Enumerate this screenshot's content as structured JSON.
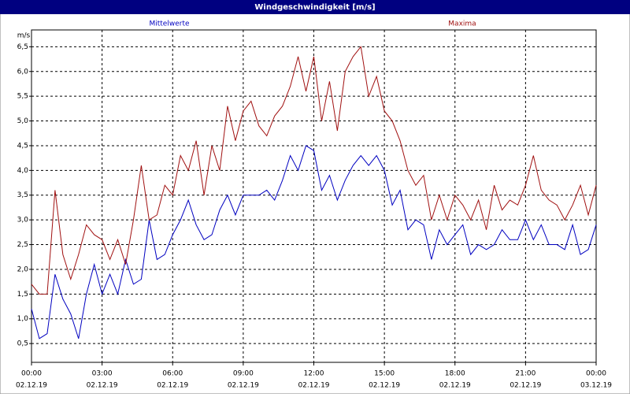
{
  "chart_data": {
    "type": "line",
    "title": "Windgeschwindigkeit [m/s]",
    "y_unit": "m/s",
    "x": [
      0,
      20,
      40,
      60,
      80,
      100,
      120,
      140,
      160,
      180,
      200,
      220,
      240,
      260,
      280,
      300,
      320,
      340,
      360,
      380,
      400,
      420,
      440,
      460,
      480,
      500,
      520,
      540,
      560,
      580,
      600,
      620,
      640,
      660,
      680,
      700,
      720,
      740,
      760,
      780,
      800,
      820,
      840,
      860,
      880,
      900,
      920,
      940,
      960,
      980,
      1000,
      1020,
      1040,
      1060,
      1080,
      1100,
      1120,
      1140,
      1160,
      1180,
      1200,
      1220,
      1240,
      1260,
      1280,
      1300,
      1320,
      1340,
      1360,
      1380,
      1400,
      1420,
      1440
    ],
    "series": [
      {
        "name": "Mittelwerte",
        "color": "#0000c0",
        "values": [
          1.2,
          0.6,
          0.7,
          1.9,
          1.4,
          1.1,
          0.6,
          1.5,
          2.1,
          1.5,
          1.9,
          1.5,
          2.2,
          1.7,
          1.8,
          3.0,
          2.2,
          2.3,
          2.7,
          3.0,
          3.4,
          2.9,
          2.6,
          2.7,
          3.2,
          3.5,
          3.1,
          3.5,
          3.5,
          3.5,
          3.6,
          3.4,
          3.8,
          4.3,
          4.0,
          4.5,
          4.4,
          3.6,
          3.9,
          3.4,
          3.8,
          4.1,
          4.3,
          4.1,
          4.3,
          4.0,
          3.3,
          3.6,
          2.8,
          3.0,
          2.9,
          2.2,
          2.8,
          2.5,
          2.7,
          2.9,
          2.3,
          2.5,
          2.4,
          2.5,
          2.8,
          2.6,
          2.6,
          3.0,
          2.6,
          2.9,
          2.5,
          2.5,
          2.4,
          2.9,
          2.3,
          2.4,
          2.9
        ]
      },
      {
        "name": "Maxima",
        "color": "#a01010",
        "values": [
          1.7,
          1.5,
          1.5,
          3.6,
          2.3,
          1.8,
          2.3,
          2.9,
          2.7,
          2.6,
          2.2,
          2.6,
          2.1,
          3.0,
          4.1,
          3.0,
          3.1,
          3.7,
          3.5,
          4.3,
          4.0,
          4.6,
          3.5,
          4.5,
          4.0,
          5.3,
          4.6,
          5.2,
          5.4,
          4.9,
          4.7,
          5.1,
          5.3,
          5.7,
          6.3,
          5.6,
          6.3,
          5.0,
          5.8,
          4.8,
          6.0,
          6.3,
          6.5,
          5.5,
          5.9,
          5.2,
          5.0,
          4.6,
          4.0,
          3.7,
          3.9,
          3.0,
          3.5,
          3.0,
          3.5,
          3.3,
          3.0,
          3.4,
          2.8,
          3.7,
          3.2,
          3.4,
          3.3,
          3.7,
          4.3,
          3.6,
          3.4,
          3.3,
          3.0,
          3.3,
          3.7,
          3.1,
          3.7
        ]
      }
    ],
    "xlim": [
      0,
      1440
    ],
    "xticks": [
      {
        "value": 0,
        "label": "00:00",
        "date": "02.12.19"
      },
      {
        "value": 180,
        "label": "03:00",
        "date": "02.12.19"
      },
      {
        "value": 360,
        "label": "06:00",
        "date": "02.12.19"
      },
      {
        "value": 540,
        "label": "09:00",
        "date": "02.12.19"
      },
      {
        "value": 720,
        "label": "12:00",
        "date": "02.12.19"
      },
      {
        "value": 900,
        "label": "15:00",
        "date": "02.12.19"
      },
      {
        "value": 1080,
        "label": "18:00",
        "date": "02.12.19"
      },
      {
        "value": 1260,
        "label": "21:00",
        "date": "02.12.19"
      },
      {
        "value": 1440,
        "label": "00:00",
        "date": "03.12.19"
      }
    ],
    "ylim": [
      0.12,
      6.84
    ],
    "yticks": [
      {
        "value": 0.5,
        "label": "0,5"
      },
      {
        "value": 1.0,
        "label": "1,0"
      },
      {
        "value": 1.5,
        "label": "1,5"
      },
      {
        "value": 2.0,
        "label": "2,0"
      },
      {
        "value": 2.5,
        "label": "2,5"
      },
      {
        "value": 3.0,
        "label": "3,0"
      },
      {
        "value": 3.5,
        "label": "3,5"
      },
      {
        "value": 4.0,
        "label": "4,0"
      },
      {
        "value": 4.5,
        "label": "4,5"
      },
      {
        "value": 5.0,
        "label": "5,0"
      },
      {
        "value": 5.5,
        "label": "5,5"
      },
      {
        "value": 6.0,
        "label": "6,0"
      },
      {
        "value": 6.5,
        "label": "6,5"
      }
    ],
    "grid": true
  }
}
